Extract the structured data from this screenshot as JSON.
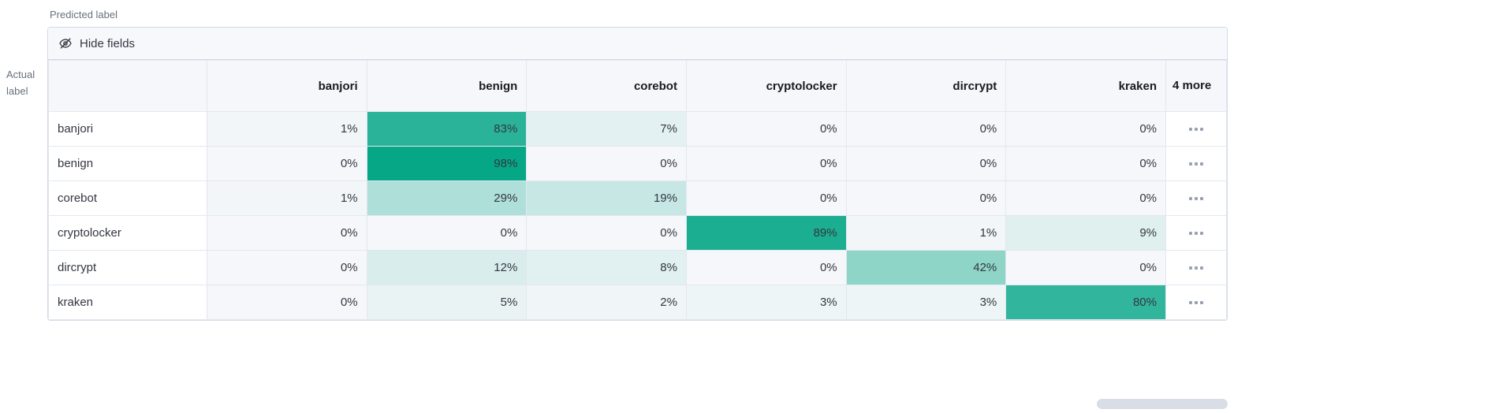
{
  "labels": {
    "predicted": "Predicted label",
    "actual": "Actual label"
  },
  "toolbar": {
    "hide_fields": "Hide fields"
  },
  "chart_data": {
    "type": "heatmap",
    "xlabel": "Predicted label",
    "ylabel": "Actual label",
    "columns": [
      "banjori",
      "benign",
      "corebot",
      "cryptolocker",
      "dircrypt",
      "kraken"
    ],
    "more_columns_label": "4 more",
    "unit": "%",
    "heatmap_min_color": "#f5f7fa",
    "heatmap_max_color": "#00a584",
    "rows": [
      {
        "label": "banjori",
        "values": [
          1,
          83,
          7,
          0,
          0,
          0
        ]
      },
      {
        "label": "benign",
        "values": [
          0,
          98,
          0,
          0,
          0,
          0
        ]
      },
      {
        "label": "corebot",
        "values": [
          1,
          29,
          19,
          0,
          0,
          0
        ]
      },
      {
        "label": "cryptolocker",
        "values": [
          0,
          0,
          0,
          89,
          1,
          9
        ]
      },
      {
        "label": "dircrypt",
        "values": [
          0,
          12,
          8,
          0,
          42,
          0
        ]
      },
      {
        "label": "kraken",
        "values": [
          0,
          5,
          2,
          3,
          3,
          80
        ]
      }
    ]
  }
}
